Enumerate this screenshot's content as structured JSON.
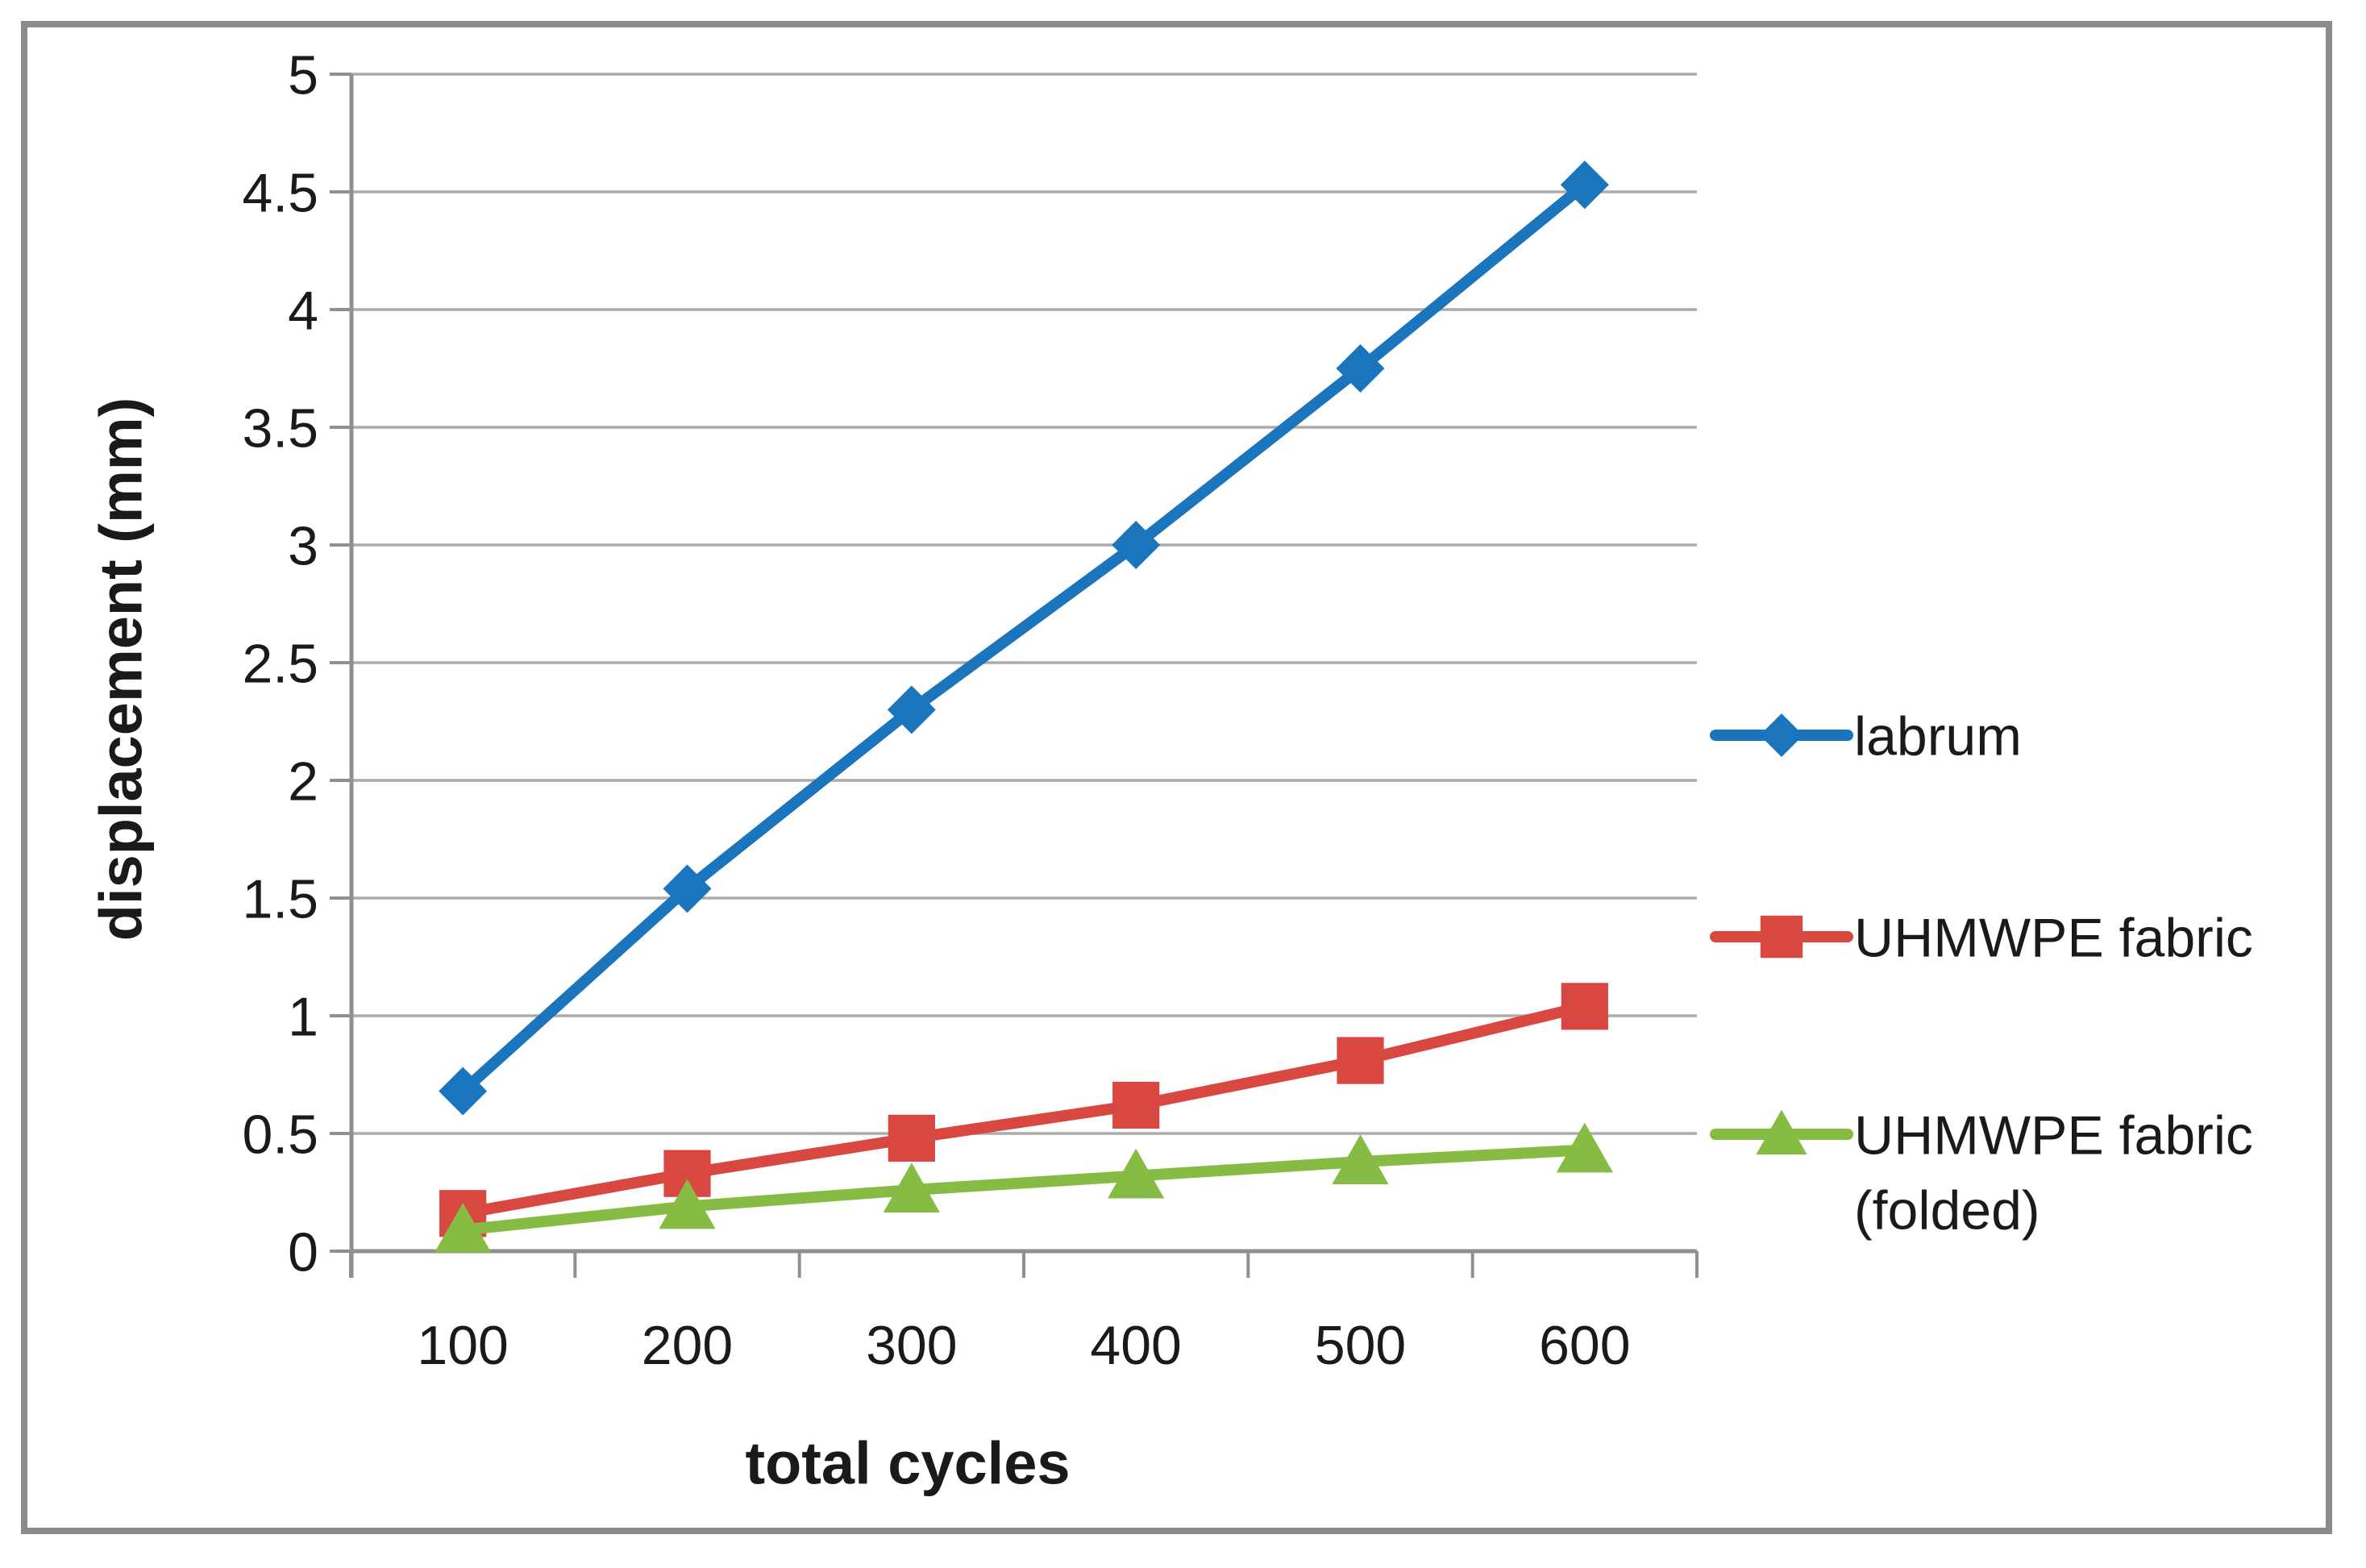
{
  "frame": {
    "border_color": "#8b8b8b",
    "background": "#ffffff"
  },
  "chart_data": {
    "type": "line",
    "title": "",
    "xlabel": "total cycles",
    "ylabel": "displacement (mm)",
    "categories": [
      100,
      200,
      300,
      400,
      500,
      600
    ],
    "x_tick_labels": [
      "100",
      "200",
      "300",
      "400",
      "500",
      "600"
    ],
    "y_tick_labels": [
      "0",
      "0.5",
      "1",
      "1.5",
      "2",
      "2.5",
      "3",
      "3.5",
      "4",
      "4.5",
      "5"
    ],
    "ylim": [
      0,
      5
    ],
    "y_step": 0.5,
    "grid": true,
    "legend_position": "right",
    "series": [
      {
        "name": "labrum",
        "marker": "diamond",
        "color": "#1b75bc",
        "values": [
          0.68,
          1.54,
          2.3,
          3.0,
          3.75,
          4.53
        ]
      },
      {
        "name": "UHMWPE fabric",
        "marker": "square",
        "color": "#d84740",
        "values": [
          0.16,
          0.33,
          0.48,
          0.62,
          0.81,
          1.04
        ]
      },
      {
        "name": "UHMWPE fabric (folded)",
        "marker": "triangle",
        "color": "#86bb44",
        "values": [
          0.09,
          0.19,
          0.26,
          0.32,
          0.38,
          0.43
        ]
      }
    ],
    "legend_entries": [
      {
        "lines": [
          "labrum"
        ]
      },
      {
        "lines": [
          "UHMWPE fabric"
        ]
      },
      {
        "lines": [
          "UHMWPE fabric",
          "(folded)"
        ]
      }
    ],
    "colors": {
      "gridline": "#acacac",
      "axis": "#8f8f8f",
      "text": "#1a1a1a"
    }
  }
}
